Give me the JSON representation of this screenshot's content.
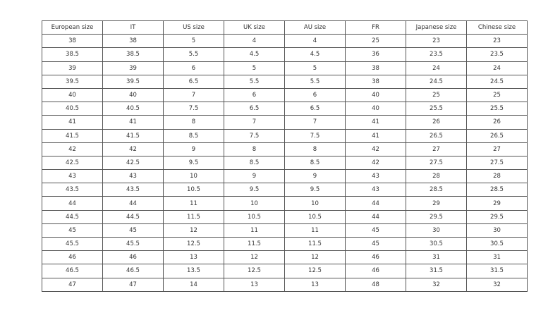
{
  "table": {
    "headers": [
      "European size",
      "IT",
      "US size",
      "UK size",
      "AU size",
      "FR",
      "Japanese size",
      "Chinese size"
    ],
    "rows": [
      [
        "38",
        "38",
        "5",
        "4",
        "4",
        "25",
        "23",
        "23"
      ],
      [
        "38.5",
        "38.5",
        "5.5",
        "4.5",
        "4.5",
        "36",
        "23.5",
        "23.5"
      ],
      [
        "39",
        "39",
        "6",
        "5",
        "5",
        "38",
        "24",
        "24"
      ],
      [
        "39.5",
        "39.5",
        "6.5",
        "5.5",
        "5.5",
        "38",
        "24.5",
        "24.5"
      ],
      [
        "40",
        "40",
        "7",
        "6",
        "6",
        "40",
        "25",
        "25"
      ],
      [
        "40.5",
        "40.5",
        "7.5",
        "6.5",
        "6.5",
        "40",
        "25.5",
        "25.5"
      ],
      [
        "41",
        "41",
        "8",
        "7",
        "7",
        "41",
        "26",
        "26"
      ],
      [
        "41.5",
        "41.5",
        "8.5",
        "7.5",
        "7.5",
        "41",
        "26.5",
        "26.5"
      ],
      [
        "42",
        "42",
        "9",
        "8",
        "8",
        "42",
        "27",
        "27"
      ],
      [
        "42.5",
        "42.5",
        "9.5",
        "8.5",
        "8.5",
        "42",
        "27.5",
        "27.5"
      ],
      [
        "43",
        "43",
        "10",
        "9",
        "9",
        "43",
        "28",
        "28"
      ],
      [
        "43.5",
        "43.5",
        "10.5",
        "9.5",
        "9.5",
        "43",
        "28.5",
        "28.5"
      ],
      [
        "44",
        "44",
        "11",
        "10",
        "10",
        "44",
        "29",
        "29"
      ],
      [
        "44.5",
        "44.5",
        "11.5",
        "10.5",
        "10.5",
        "44",
        "29.5",
        "29.5"
      ],
      [
        "45",
        "45",
        "12",
        "11",
        "11",
        "45",
        "30",
        "30"
      ],
      [
        "45.5",
        "45.5",
        "12.5",
        "11.5",
        "11.5",
        "45",
        "30.5",
        "30.5"
      ],
      [
        "46",
        "46",
        "13",
        "12",
        "12",
        "46",
        "31",
        "31"
      ],
      [
        "46.5",
        "46.5",
        "13.5",
        "12.5",
        "12.5",
        "46",
        "31.5",
        "31.5"
      ],
      [
        "47",
        "47",
        "14",
        "13",
        "13",
        "48",
        "32",
        "32"
      ]
    ]
  }
}
